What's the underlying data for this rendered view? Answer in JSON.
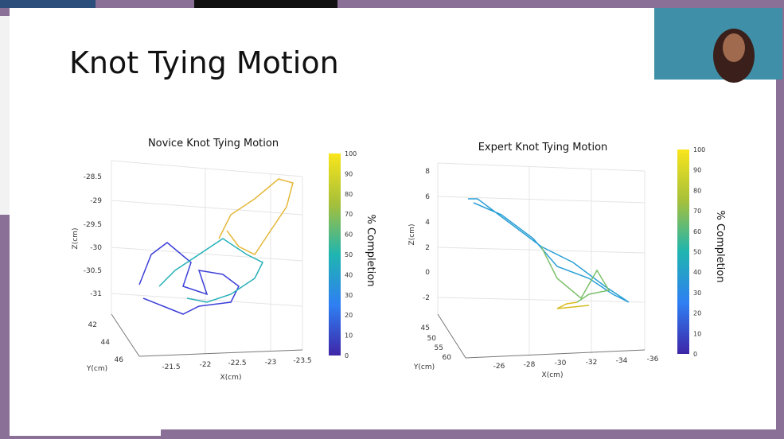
{
  "slide": {
    "title": "Knot Tying Motion"
  },
  "plots": [
    {
      "title": "Novice Knot Tying Motion",
      "z_label": "Z(cm)",
      "y_label": "Y(cm)",
      "x_label": "X(cm)",
      "z_ticks": [
        "-28.5",
        "-29",
        "-29.5",
        "-30",
        "-30.5",
        "-31"
      ],
      "y_ticks": [
        "42",
        "44",
        "46"
      ],
      "x_ticks": [
        "-21.5",
        "-22",
        "-22.5",
        "-23",
        "-23.5"
      ],
      "colorbar_label": "% Completion",
      "colorbar_ticks": [
        "100",
        "90",
        "80",
        "70",
        "60",
        "50",
        "40",
        "30",
        "20",
        "10",
        "0"
      ]
    },
    {
      "title": "Expert Knot Tying Motion",
      "z_label": "Z(cm)",
      "y_label": "Y(cm)",
      "x_label": "X(cm)",
      "z_ticks": [
        "8",
        "6",
        "4",
        "2",
        "0",
        "-2"
      ],
      "y_ticks": [
        "45",
        "50",
        "55",
        "60"
      ],
      "x_ticks": [
        "-26",
        "-28",
        "-30",
        "-32",
        "-34",
        "-36"
      ],
      "colorbar_label": "% Completion",
      "colorbar_ticks": [
        "100",
        "90",
        "80",
        "70",
        "60",
        "50",
        "40",
        "30",
        "20",
        "10",
        "0"
      ]
    }
  ]
}
